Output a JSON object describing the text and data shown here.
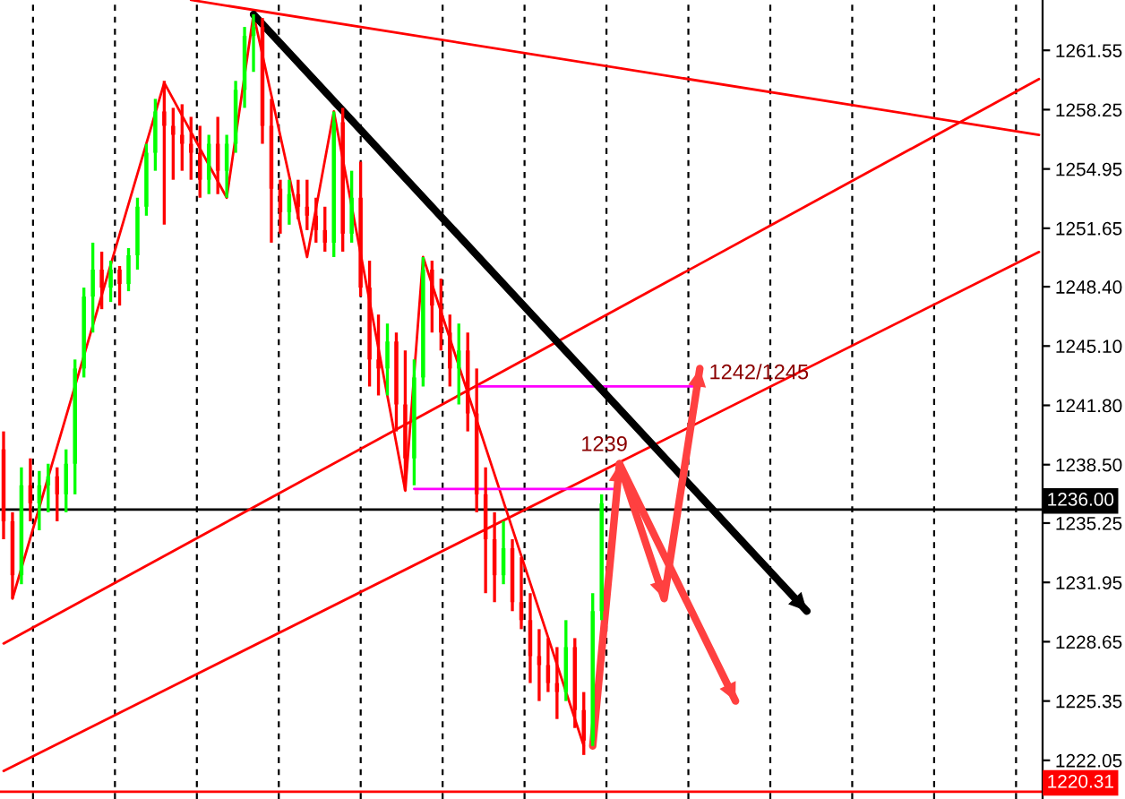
{
  "chart_data": {
    "type": "candlestick",
    "categories": [
      null,
      null,
      null,
      null,
      null,
      null,
      null,
      null,
      null,
      null,
      null,
      null,
      null,
      null,
      null,
      null,
      null,
      null,
      null,
      null,
      null,
      null,
      null,
      null,
      null,
      null,
      null,
      null,
      null,
      null,
      null,
      null,
      null,
      null,
      null,
      null,
      null,
      null,
      null,
      null,
      null,
      null,
      null,
      null,
      null,
      null,
      null,
      null,
      null,
      null,
      null,
      null,
      null,
      null,
      null,
      null,
      null,
      null,
      null,
      null,
      null,
      null,
      null,
      null,
      null,
      null,
      null,
      null,
      null,
      null,
      null,
      null,
      null,
      null,
      null,
      null,
      null,
      null,
      null,
      null,
      null,
      null,
      null,
      null,
      null,
      null,
      null,
      null,
      null,
      null,
      null,
      null,
      null,
      null,
      null,
      null,
      null,
      null,
      null,
      null,
      null,
      null,
      null,
      null,
      null,
      null,
      null,
      null,
      null,
      null,
      null,
      null,
      null,
      null,
      null,
      null,
      null
    ],
    "ohlc": [
      [
        1239.35,
        1240.35,
        1234.35,
        1235.35
      ],
      [
        1235.35,
        1235.85,
        1231.05,
        1232.35
      ],
      [
        1232.35,
        1238.35,
        1231.85,
        1237.35
      ],
      [
        1237.35,
        1238.85,
        1235.35,
        1236.35
      ],
      [
        1236.35,
        1238.15,
        1234.85,
        1237.35
      ],
      [
        1237.35,
        1238.55,
        1235.85,
        1237.85
      ],
      [
        1237.85,
        1238.35,
        1235.35,
        1236.85
      ],
      [
        1236.85,
        1239.35,
        1235.85,
        1238.55
      ],
      [
        1238.55,
        1244.35,
        1236.85,
        1243.85
      ],
      [
        1243.85,
        1248.35,
        1243.35,
        1247.85
      ],
      [
        1247.85,
        1250.85,
        1245.85,
        1249.35
      ],
      [
        1249.35,
        1250.35,
        1247.15,
        1248.35
      ],
      [
        1248.35,
        1249.85,
        1247.55,
        1249.35
      ],
      [
        1249.35,
        1249.55,
        1247.35,
        1248.55
      ],
      [
        1248.55,
        1250.55,
        1248.15,
        1250.15
      ],
      [
        1250.15,
        1253.35,
        1249.35,
        1252.85
      ],
      [
        1252.85,
        1256.35,
        1252.35,
        1255.85
      ],
      [
        1255.85,
        1258.85,
        1254.85,
        1258.15
      ],
      [
        1258.15,
        1259.85,
        1251.85,
        1257.35
      ],
      [
        1257.35,
        1258.35,
        1254.35,
        1256.85
      ],
      [
        1256.85,
        1258.55,
        1254.85,
        1256.35
      ],
      [
        1256.35,
        1257.85,
        1254.35,
        1255.85
      ],
      [
        1255.85,
        1257.35,
        1253.35,
        1254.35
      ],
      [
        1254.35,
        1256.85,
        1253.55,
        1256.35
      ],
      [
        1256.35,
        1257.85,
        1253.55,
        1254.85
      ],
      [
        1254.85,
        1256.85,
        1253.35,
        1256.35
      ],
      [
        1256.35,
        1259.85,
        1255.85,
        1259.35
      ],
      [
        1259.35,
        1262.85,
        1258.35,
        1262.35
      ],
      [
        1262.35,
        1263.55,
        1260.35,
        1262.85
      ],
      [
        1262.85,
        1263.35,
        1256.35,
        1257.35
      ],
      [
        1257.35,
        1258.85,
        1250.85,
        1253.85
      ],
      [
        1253.85,
        1254.35,
        1251.35,
        1252.55
      ],
      [
        1252.55,
        1254.35,
        1251.85,
        1253.55
      ],
      [
        1253.55,
        1254.35,
        1252.15,
        1252.85
      ],
      [
        1252.85,
        1254.35,
        1251.55,
        1252.35
      ],
      [
        1252.35,
        1253.35,
        1250.85,
        1251.55
      ],
      [
        1251.55,
        1252.85,
        1250.35,
        1250.85
      ],
      [
        1250.85,
        1258.15,
        1250.05,
        1257.55
      ],
      [
        1257.55,
        1258.35,
        1250.35,
        1251.35
      ],
      [
        1251.35,
        1254.85,
        1250.85,
        1253.35
      ],
      [
        1253.35,
        1255.35,
        1247.85,
        1248.35
      ],
      [
        1248.35,
        1249.85,
        1242.85,
        1244.35
      ],
      [
        1244.35,
        1246.85,
        1242.35,
        1243.85
      ],
      [
        1243.85,
        1246.35,
        1242.35,
        1245.35
      ],
      [
        1245.35,
        1245.85,
        1240.35,
        1241.85
      ],
      [
        1241.85,
        1244.85,
        1237.05,
        1238.85
      ],
      [
        1238.85,
        1244.35,
        1237.35,
        1243.35
      ],
      [
        1243.35,
        1250.05,
        1242.85,
        1249.35
      ],
      [
        1249.35,
        1249.85,
        1245.85,
        1247.35
      ],
      [
        1247.35,
        1248.85,
        1244.85,
        1245.85
      ],
      [
        1245.85,
        1246.85,
        1242.85,
        1243.85
      ],
      [
        1243.85,
        1246.35,
        1241.85,
        1244.85
      ],
      [
        1244.85,
        1245.85,
        1240.35,
        1241.35
      ],
      [
        1241.35,
        1243.85,
        1235.85,
        1236.85
      ],
      [
        1236.85,
        1238.35,
        1231.35,
        1234.35
      ],
      [
        1234.35,
        1235.85,
        1230.85,
        1232.35
      ],
      [
        1232.35,
        1235.35,
        1231.85,
        1233.85
      ],
      [
        1233.85,
        1234.35,
        1230.35,
        1230.85
      ],
      [
        1230.85,
        1233.35,
        1229.35,
        1229.85
      ],
      [
        1229.85,
        1231.35,
        1226.35,
        1227.85
      ],
      [
        1227.85,
        1229.35,
        1225.35,
        1227.35
      ],
      [
        1227.35,
        1228.85,
        1225.85,
        1226.35
      ],
      [
        1226.35,
        1228.35,
        1224.35,
        1225.85
      ],
      [
        1225.85,
        1229.85,
        1225.35,
        1228.35
      ],
      [
        1228.35,
        1228.85,
        1223.85,
        1224.85
      ],
      [
        1224.85,
        1225.85,
        1222.35,
        1223.15
      ],
      [
        1223.15,
        1231.35,
        1222.85,
        1230.35
      ],
      [
        1230.35,
        1236.85,
        1229.85,
        1236.35
      ],
      null,
      null,
      null,
      null,
      null,
      null,
      null,
      null,
      null,
      null,
      null,
      null,
      null,
      null,
      null,
      null,
      null,
      null,
      null,
      null,
      null,
      null,
      null,
      null,
      null,
      null,
      null,
      null,
      null,
      null,
      null,
      null,
      null,
      null,
      null,
      null,
      null,
      null,
      null,
      null,
      null,
      null,
      null,
      null,
      null,
      null,
      null,
      null,
      null
    ],
    "colors": [
      "#ff0000",
      "#ff0000",
      "#00ff00",
      "#ff0000",
      "#00ff00",
      "#00ff00",
      "#ff0000",
      "#00ff00",
      "#00ff00",
      "#00ff00",
      "#00ff00",
      "#ff0000",
      "#00ff00",
      "#ff0000",
      "#00ff00",
      "#00ff00",
      "#00ff00",
      "#00ff00",
      "#ff0000",
      "#ff0000",
      "#ff0000",
      "#ff0000",
      "#ff0000",
      "#00ff00",
      "#ff0000",
      "#00ff00",
      "#00ff00",
      "#00ff00",
      "#00ff00",
      "#ff0000",
      "#ff0000",
      "#ff0000",
      "#00ff00",
      "#ff0000",
      "#ff0000",
      "#ff0000",
      "#ff0000",
      "#00ff00",
      "#ff0000",
      "#00ff00",
      "#ff0000",
      "#ff0000",
      "#ff0000",
      "#00ff00",
      "#ff0000",
      "#ff0000",
      "#00ff00",
      "#00ff00",
      "#ff0000",
      "#ff0000",
      "#ff0000",
      "#00ff00",
      "#ff0000",
      "#ff0000",
      "#ff0000",
      "#ff0000",
      "#00ff00",
      "#ff0000",
      "#ff0000",
      "#ff0000",
      "#ff0000",
      "#ff0000",
      "#ff0000",
      "#00ff00",
      "#ff0000",
      "#ff0000",
      "#00ff00",
      "#00ff00",
      null,
      null,
      null,
      null,
      null,
      null,
      null,
      null,
      null,
      null,
      null,
      null,
      null,
      null,
      null,
      null,
      null,
      null,
      null,
      null,
      null,
      null,
      null,
      null,
      null,
      null,
      null,
      null,
      null,
      null,
      null,
      null,
      null,
      null,
      null,
      null,
      null,
      null,
      null,
      null,
      null,
      null,
      null,
      null,
      null,
      null,
      null,
      null,
      null
    ],
    "series": [
      {
        "type": "line",
        "color": "#ff0000",
        "values": [
          null,
          1231.05,
          null,
          null,
          null,
          null,
          null,
          null,
          null,
          null,
          null,
          null,
          null,
          null,
          null,
          null,
          null,
          null,
          1259.75,
          null,
          null,
          null,
          null,
          null,
          null,
          1253.35,
          null,
          null,
          1263.55,
          null,
          null,
          null,
          null,
          null,
          1250.05,
          null,
          null,
          1258.15,
          null,
          null,
          null,
          null,
          null,
          null,
          null,
          1237.05,
          null,
          1250.05,
          null,
          null,
          null,
          null,
          null,
          null,
          null,
          null,
          null,
          null,
          null,
          null,
          null,
          null,
          null,
          null,
          null,
          1222.85,
          null,
          null,
          null,
          null,
          null,
          null,
          null,
          null,
          null,
          null,
          null,
          null,
          null,
          null,
          null,
          null,
          null,
          null,
          null,
          null,
          null,
          null,
          null,
          null,
          null,
          null,
          null,
          null,
          null,
          null,
          null,
          null,
          null,
          null,
          null,
          null,
          null,
          null,
          null,
          null,
          null,
          null,
          null,
          null,
          null,
          null,
          null,
          null,
          null,
          null,
          null
        ]
      },
      {
        "type": "line",
        "color": "#ff0000",
        "values": [
          null,
          null,
          null,
          null,
          null,
          null,
          null,
          null,
          null,
          null,
          null,
          null,
          null,
          null,
          null,
          null,
          null,
          null,
          null,
          null,
          null,
          1264.35,
          null,
          null,
          null,
          null,
          null,
          null,
          null,
          null,
          null,
          null,
          null,
          null,
          null,
          null,
          null,
          null,
          null,
          null,
          null,
          null,
          null,
          null,
          null,
          null,
          null,
          null,
          null,
          null,
          null,
          null,
          null,
          null,
          null,
          null,
          null,
          null,
          null,
          null,
          null,
          null,
          null,
          null,
          null,
          null,
          null,
          null,
          null,
          null,
          null,
          null,
          null,
          null,
          null,
          null,
          null,
          null,
          null,
          null,
          null,
          null,
          null,
          null,
          null,
          null,
          null,
          null,
          null,
          null,
          null,
          null,
          null,
          null,
          null,
          null,
          null,
          null,
          null,
          null,
          null,
          null,
          null,
          null,
          null,
          null,
          null,
          null,
          null,
          null,
          null,
          null,
          null,
          null,
          null,
          null,
          1256.85
        ]
      },
      {
        "type": "line",
        "color": "#ff0000",
        "values": [
          1228.55,
          null,
          null,
          null,
          null,
          null,
          null,
          null,
          null,
          null,
          null,
          null,
          null,
          null,
          null,
          null,
          null,
          null,
          null,
          null,
          null,
          null,
          null,
          null,
          null,
          null,
          null,
          null,
          null,
          null,
          null,
          null,
          null,
          null,
          null,
          null,
          null,
          null,
          null,
          null,
          null,
          null,
          null,
          null,
          null,
          null,
          null,
          null,
          null,
          null,
          null,
          null,
          null,
          null,
          null,
          null,
          null,
          null,
          null,
          null,
          null,
          null,
          null,
          null,
          null,
          null,
          null,
          null,
          null,
          null,
          null,
          null,
          null,
          null,
          null,
          null,
          null,
          null,
          null,
          null,
          null,
          null,
          null,
          null,
          null,
          null,
          null,
          null,
          null,
          null,
          null,
          null,
          null,
          null,
          null,
          null,
          null,
          null,
          null,
          null,
          null,
          null,
          null,
          null,
          null,
          null,
          null,
          null,
          null,
          null,
          null,
          null,
          null,
          null,
          null,
          null,
          1259.95
        ]
      },
      {
        "type": "line",
        "color": "#ff0000",
        "values": [
          1221.46,
          null,
          null,
          null,
          null,
          null,
          null,
          null,
          null,
          null,
          null,
          null,
          null,
          null,
          null,
          null,
          null,
          null,
          null,
          null,
          null,
          null,
          null,
          null,
          null,
          null,
          null,
          null,
          null,
          null,
          null,
          null,
          null,
          null,
          null,
          null,
          null,
          null,
          null,
          null,
          null,
          null,
          null,
          null,
          null,
          null,
          null,
          null,
          null,
          null,
          null,
          null,
          null,
          null,
          null,
          null,
          null,
          null,
          null,
          null,
          null,
          null,
          null,
          null,
          null,
          null,
          null,
          null,
          null,
          null,
          null,
          null,
          null,
          null,
          null,
          null,
          null,
          null,
          null,
          null,
          null,
          null,
          null,
          null,
          null,
          null,
          null,
          null,
          null,
          null,
          null,
          null,
          null,
          null,
          null,
          null,
          null,
          null,
          null,
          null,
          null,
          null,
          null,
          null,
          null,
          null,
          null,
          null,
          null,
          null,
          null,
          null,
          null,
          null,
          null,
          null,
          1250.33
        ]
      },
      {
        "type": "line",
        "color": "#ff00ff",
        "values": [
          null,
          null,
          null,
          null,
          null,
          null,
          null,
          null,
          null,
          null,
          null,
          null,
          null,
          null,
          null,
          null,
          null,
          null,
          null,
          null,
          null,
          null,
          null,
          null,
          null,
          null,
          null,
          null,
          null,
          null,
          null,
          null,
          null,
          null,
          null,
          null,
          null,
          null,
          null,
          null,
          null,
          null,
          null,
          null,
          null,
          null,
          1237.15,
          null,
          null,
          null,
          null,
          null,
          null,
          null,
          null,
          null,
          null,
          null,
          null,
          null,
          null,
          null,
          null,
          null,
          null,
          null,
          null,
          null,
          null,
          1237.15,
          null,
          null,
          null,
          null,
          null,
          null,
          null,
          null,
          null,
          null,
          null,
          null,
          null,
          null,
          null,
          null,
          null,
          null,
          null,
          null,
          null,
          null,
          null,
          null,
          null,
          null,
          null,
          null,
          null,
          null,
          null,
          null,
          null,
          null,
          null,
          null,
          null,
          null,
          null,
          null,
          null,
          null,
          null,
          null,
          null,
          null,
          null
        ]
      },
      {
        "type": "line",
        "color": "#ff00ff",
        "values": [
          null,
          null,
          null,
          null,
          null,
          null,
          null,
          null,
          null,
          null,
          null,
          null,
          null,
          null,
          null,
          null,
          null,
          null,
          null,
          null,
          null,
          null,
          null,
          null,
          null,
          null,
          null,
          null,
          null,
          null,
          null,
          null,
          null,
          null,
          null,
          null,
          null,
          null,
          null,
          null,
          null,
          null,
          null,
          null,
          null,
          null,
          null,
          null,
          null,
          null,
          null,
          null,
          null,
          1242.85,
          null,
          null,
          null,
          null,
          null,
          null,
          null,
          null,
          null,
          null,
          null,
          null,
          null,
          null,
          null,
          null,
          null,
          null,
          null,
          null,
          null,
          null,
          null,
          null,
          1242.85,
          null,
          null,
          null,
          null,
          null,
          null,
          null,
          null,
          null,
          null,
          null,
          null,
          null,
          null,
          null,
          null,
          null,
          null,
          null,
          null,
          null,
          null,
          null,
          null,
          null,
          null,
          null,
          null,
          null,
          null,
          null,
          null,
          null,
          null,
          null,
          null,
          null,
          null
        ]
      },
      {
        "type": "line",
        "color": "#000000",
        "values": [
          null,
          null,
          null,
          null,
          null,
          null,
          null,
          null,
          null,
          null,
          null,
          null,
          null,
          null,
          null,
          null,
          null,
          null,
          null,
          null,
          null,
          null,
          null,
          null,
          null,
          null,
          null,
          null,
          1263.55,
          null,
          null,
          null,
          null,
          null,
          null,
          null,
          null,
          null,
          null,
          null,
          null,
          null,
          null,
          null,
          null,
          null,
          null,
          null,
          null,
          null,
          null,
          null,
          null,
          null,
          null,
          null,
          null,
          null,
          null,
          null,
          null,
          null,
          null,
          null,
          null,
          null,
          null,
          null,
          null,
          null,
          null,
          null,
          null,
          null,
          null,
          null,
          null,
          null,
          null,
          null,
          null,
          null,
          null,
          null,
          null,
          null,
          null,
          null,
          null,
          null,
          1230.35,
          null,
          null,
          null,
          null,
          null,
          null,
          null,
          null,
          null,
          null,
          null,
          null,
          null,
          null,
          null,
          null,
          null,
          null,
          null,
          null,
          null,
          null,
          null,
          null,
          null,
          null
        ]
      },
      {
        "type": "line",
        "color": "#ff4040",
        "values": [
          null,
          null,
          null,
          null,
          null,
          null,
          null,
          null,
          null,
          null,
          null,
          null,
          null,
          null,
          null,
          null,
          null,
          null,
          null,
          null,
          null,
          null,
          null,
          null,
          null,
          null,
          null,
          null,
          null,
          null,
          null,
          null,
          null,
          null,
          null,
          null,
          null,
          null,
          null,
          null,
          null,
          null,
          null,
          null,
          null,
          null,
          null,
          null,
          null,
          null,
          null,
          null,
          null,
          null,
          null,
          null,
          null,
          null,
          null,
          null,
          null,
          null,
          null,
          null,
          null,
          null,
          1222.85,
          null,
          null,
          1238.55,
          null,
          null,
          null,
          null,
          1231.05,
          null,
          null,
          null,
          1243.85,
          null,
          null,
          null,
          null,
          null,
          null,
          null,
          null,
          null,
          null,
          null,
          null,
          null,
          null,
          null,
          null,
          null,
          null,
          null,
          null,
          null,
          null,
          null,
          null,
          null,
          null,
          null,
          null,
          null,
          null,
          null,
          null,
          null,
          null,
          null,
          null,
          null,
          null
        ]
      },
      {
        "type": "line",
        "color": "#ff4040",
        "values": [
          null,
          null,
          null,
          null,
          null,
          null,
          null,
          null,
          null,
          null,
          null,
          null,
          null,
          null,
          null,
          null,
          null,
          null,
          null,
          null,
          null,
          null,
          null,
          null,
          null,
          null,
          null,
          null,
          null,
          null,
          null,
          null,
          null,
          null,
          null,
          null,
          null,
          null,
          null,
          null,
          null,
          null,
          null,
          null,
          null,
          null,
          null,
          null,
          null,
          null,
          null,
          null,
          null,
          null,
          null,
          null,
          null,
          null,
          null,
          null,
          null,
          null,
          null,
          null,
          null,
          null,
          null,
          null,
          null,
          1238.55,
          null,
          null,
          null,
          null,
          null,
          null,
          null,
          null,
          null,
          null,
          null,
          null,
          1225.35,
          null,
          null,
          null,
          null,
          null,
          null,
          null,
          null,
          null,
          null,
          null,
          null,
          null,
          null,
          null,
          null,
          null,
          null,
          null,
          null,
          null,
          null,
          null,
          null,
          null,
          null,
          null,
          null,
          null,
          null,
          null,
          null,
          null,
          null
        ]
      }
    ],
    "ylim": [
      1219.9,
      1264.35
    ],
    "yticks": [
      1222.05,
      1225.35,
      1228.65,
      1231.95,
      1235.25,
      {
        "value": 1238.5,
        "label": "1238.50"
      },
      {
        "value": 1241.8,
        "label": "1241.80"
      },
      {
        "value": 1245.1,
        "label": "1245.10"
      },
      {
        "value": 1248.4,
        "label": "1248.40"
      },
      1251.65,
      1254.95,
      1258.25,
      1261.55
    ],
    "tick_labels": "y",
    "ref_lines": [
      {
        "axis": "y",
        "value": 1236.0,
        "label": "1236.00",
        "color": "#000000"
      },
      {
        "axis": "y",
        "value": 1220.31,
        "label": "1220.31",
        "color": "#ff0000"
      }
    ],
    "annotations": [
      "1239",
      "1242/1245"
    ]
  }
}
